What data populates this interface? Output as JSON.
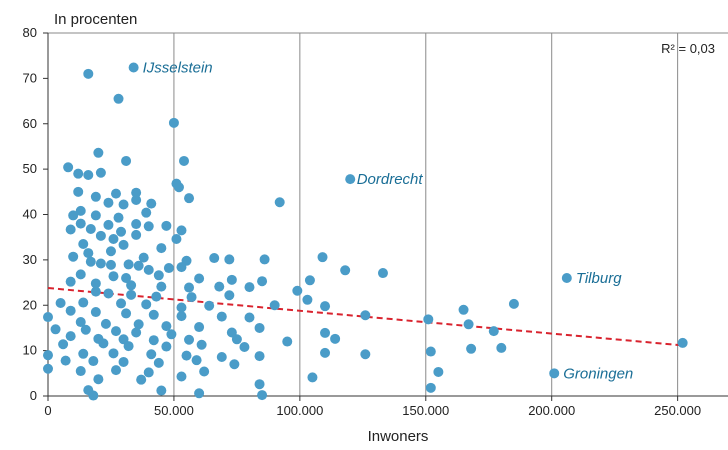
{
  "chart_data": {
    "type": "scatter",
    "ylabel": "In procenten",
    "xlabel": "Inwoners",
    "r_squared_text": "R² = 0,03",
    "xlim": [
      0,
      270000
    ],
    "ylim": [
      0,
      80
    ],
    "x_ticks": [
      {
        "value": 0,
        "label": "0"
      },
      {
        "value": 50000,
        "label": "50.000"
      },
      {
        "value": 100000,
        "label": "100.000"
      },
      {
        "value": 150000,
        "label": "150.000"
      },
      {
        "value": 200000,
        "label": "200.000"
      },
      {
        "value": 250000,
        "label": "250.000"
      }
    ],
    "y_ticks": [
      {
        "value": 0,
        "label": "0"
      },
      {
        "value": 10,
        "label": "10"
      },
      {
        "value": 20,
        "label": "20"
      },
      {
        "value": 30,
        "label": "30"
      },
      {
        "value": 40,
        "label": "40"
      },
      {
        "value": 50,
        "label": "50"
      },
      {
        "value": 60,
        "label": "60"
      },
      {
        "value": 70,
        "label": "70"
      },
      {
        "value": 80,
        "label": "80"
      }
    ],
    "grid": {
      "vertical": true,
      "horizontal": false
    },
    "colors": {
      "points": "#4a9cc8",
      "trend": "#d9232e",
      "labels": "#1a6e96",
      "grid": "#8a8a8a"
    },
    "trendline": {
      "x": [
        0,
        251000
      ],
      "y": [
        23.8,
        11.2
      ]
    },
    "annotations": [
      {
        "text": "IJsselstein",
        "x": 34000,
        "y": 72.4
      },
      {
        "text": "Dordrecht",
        "x": 119000,
        "y": 47.8
      },
      {
        "text": "Tilburg",
        "x": 206000,
        "y": 26.0
      },
      {
        "text": "Groningen",
        "x": 201000,
        "y": 5.0
      }
    ],
    "points": [
      [
        34000,
        72.4
      ],
      [
        120000,
        47.8
      ],
      [
        206000,
        26.0
      ],
      [
        201000,
        5.0
      ],
      [
        16000,
        71.0
      ],
      [
        28000,
        65.5
      ],
      [
        50000,
        60.2
      ],
      [
        20000,
        53.6
      ],
      [
        31000,
        51.8
      ],
      [
        54000,
        51.8
      ],
      [
        8000,
        50.4
      ],
      [
        12000,
        49.0
      ],
      [
        21000,
        49.2
      ],
      [
        16000,
        48.7
      ],
      [
        51000,
        46.8
      ],
      [
        52000,
        46.0
      ],
      [
        12000,
        45.0
      ],
      [
        35000,
        44.8
      ],
      [
        27000,
        44.6
      ],
      [
        19000,
        43.9
      ],
      [
        56000,
        43.6
      ],
      [
        35000,
        43.2
      ],
      [
        24000,
        42.6
      ],
      [
        30000,
        42.2
      ],
      [
        41000,
        42.4
      ],
      [
        92000,
        42.7
      ],
      [
        13000,
        40.8
      ],
      [
        10000,
        39.8
      ],
      [
        19000,
        39.8
      ],
      [
        39000,
        40.4
      ],
      [
        28000,
        39.3
      ],
      [
        13000,
        38.0
      ],
      [
        35000,
        37.9
      ],
      [
        24000,
        37.7
      ],
      [
        40000,
        37.4
      ],
      [
        47000,
        37.5
      ],
      [
        9000,
        36.7
      ],
      [
        17000,
        36.8
      ],
      [
        53000,
        36.5
      ],
      [
        29000,
        36.2
      ],
      [
        35000,
        35.5
      ],
      [
        21000,
        35.3
      ],
      [
        51000,
        34.6
      ],
      [
        26000,
        34.6
      ],
      [
        14000,
        33.5
      ],
      [
        30000,
        33.3
      ],
      [
        45000,
        32.6
      ],
      [
        16000,
        31.5
      ],
      [
        25000,
        31.9
      ],
      [
        10000,
        30.7
      ],
      [
        38000,
        30.5
      ],
      [
        55000,
        29.8
      ],
      [
        66000,
        30.4
      ],
      [
        72000,
        30.1
      ],
      [
        86000,
        30.1
      ],
      [
        109000,
        30.6
      ],
      [
        17000,
        29.6
      ],
      [
        21000,
        29.2
      ],
      [
        25000,
        28.9
      ],
      [
        32000,
        29.0
      ],
      [
        36000,
        28.7
      ],
      [
        48000,
        28.2
      ],
      [
        53000,
        28.4
      ],
      [
        40000,
        27.8
      ],
      [
        133000,
        27.1
      ],
      [
        118000,
        27.7
      ],
      [
        13000,
        26.8
      ],
      [
        26000,
        26.4
      ],
      [
        31000,
        26.0
      ],
      [
        44000,
        26.6
      ],
      [
        60000,
        25.9
      ],
      [
        73000,
        25.6
      ],
      [
        85000,
        25.3
      ],
      [
        104000,
        25.5
      ],
      [
        9000,
        25.2
      ],
      [
        19000,
        24.8
      ],
      [
        33000,
        24.4
      ],
      [
        45000,
        24.1
      ],
      [
        56000,
        23.9
      ],
      [
        68000,
        24.1
      ],
      [
        80000,
        24.0
      ],
      [
        99000,
        23.2
      ],
      [
        19000,
        23.0
      ],
      [
        24000,
        22.6
      ],
      [
        33000,
        22.3
      ],
      [
        43000,
        21.9
      ],
      [
        57000,
        21.8
      ],
      [
        72000,
        22.2
      ],
      [
        103000,
        21.2
      ],
      [
        5000,
        20.5
      ],
      [
        14000,
        20.6
      ],
      [
        29000,
        20.4
      ],
      [
        39000,
        20.2
      ],
      [
        53000,
        19.5
      ],
      [
        64000,
        19.9
      ],
      [
        90000,
        20.0
      ],
      [
        110000,
        19.8
      ],
      [
        165000,
        19.0
      ],
      [
        185000,
        20.3
      ],
      [
        9000,
        18.8
      ],
      [
        19000,
        18.5
      ],
      [
        31000,
        18.2
      ],
      [
        42000,
        17.9
      ],
      [
        53000,
        17.6
      ],
      [
        69000,
        17.5
      ],
      [
        80000,
        17.3
      ],
      [
        126000,
        17.8
      ],
      [
        151000,
        16.9
      ],
      [
        0,
        17.4
      ],
      [
        13000,
        16.3
      ],
      [
        23000,
        15.9
      ],
      [
        36000,
        15.8
      ],
      [
        47000,
        15.4
      ],
      [
        60000,
        15.2
      ],
      [
        84000,
        15.0
      ],
      [
        167000,
        15.8
      ],
      [
        3000,
        14.7
      ],
      [
        15000,
        14.6
      ],
      [
        27000,
        14.3
      ],
      [
        35000,
        14.0
      ],
      [
        49000,
        13.6
      ],
      [
        73000,
        14.0
      ],
      [
        110000,
        13.9
      ],
      [
        177000,
        14.3
      ],
      [
        9000,
        13.2
      ],
      [
        20000,
        12.6
      ],
      [
        30000,
        12.5
      ],
      [
        42000,
        12.3
      ],
      [
        56000,
        12.4
      ],
      [
        75000,
        12.5
      ],
      [
        95000,
        12.0
      ],
      [
        114000,
        12.6
      ],
      [
        6000,
        11.4
      ],
      [
        22000,
        11.6
      ],
      [
        32000,
        11.0
      ],
      [
        47000,
        10.9
      ],
      [
        61000,
        11.3
      ],
      [
        78000,
        10.8
      ],
      [
        152000,
        9.8
      ],
      [
        168000,
        10.4
      ],
      [
        180000,
        10.6
      ],
      [
        0,
        9.0
      ],
      [
        14000,
        9.3
      ],
      [
        26000,
        9.4
      ],
      [
        41000,
        9.2
      ],
      [
        55000,
        8.9
      ],
      [
        69000,
        8.6
      ],
      [
        84000,
        8.8
      ],
      [
        110000,
        9.5
      ],
      [
        126000,
        9.2
      ],
      [
        7000,
        7.8
      ],
      [
        18000,
        7.7
      ],
      [
        30000,
        7.5
      ],
      [
        44000,
        7.3
      ],
      [
        59000,
        7.9
      ],
      [
        74000,
        7.0
      ],
      [
        0,
        6.0
      ],
      [
        13000,
        5.5
      ],
      [
        27000,
        5.7
      ],
      [
        40000,
        5.2
      ],
      [
        62000,
        5.4
      ],
      [
        155000,
        5.3
      ],
      [
        105000,
        4.1
      ],
      [
        152000,
        1.8
      ],
      [
        20000,
        3.7
      ],
      [
        37000,
        3.6
      ],
      [
        53000,
        4.3
      ],
      [
        84000,
        2.6
      ],
      [
        16000,
        1.3
      ],
      [
        45000,
        1.2
      ],
      [
        85000,
        0.2
      ],
      [
        18000,
        0.1
      ],
      [
        60000,
        0.6
      ],
      [
        252000,
        11.7
      ]
    ]
  }
}
